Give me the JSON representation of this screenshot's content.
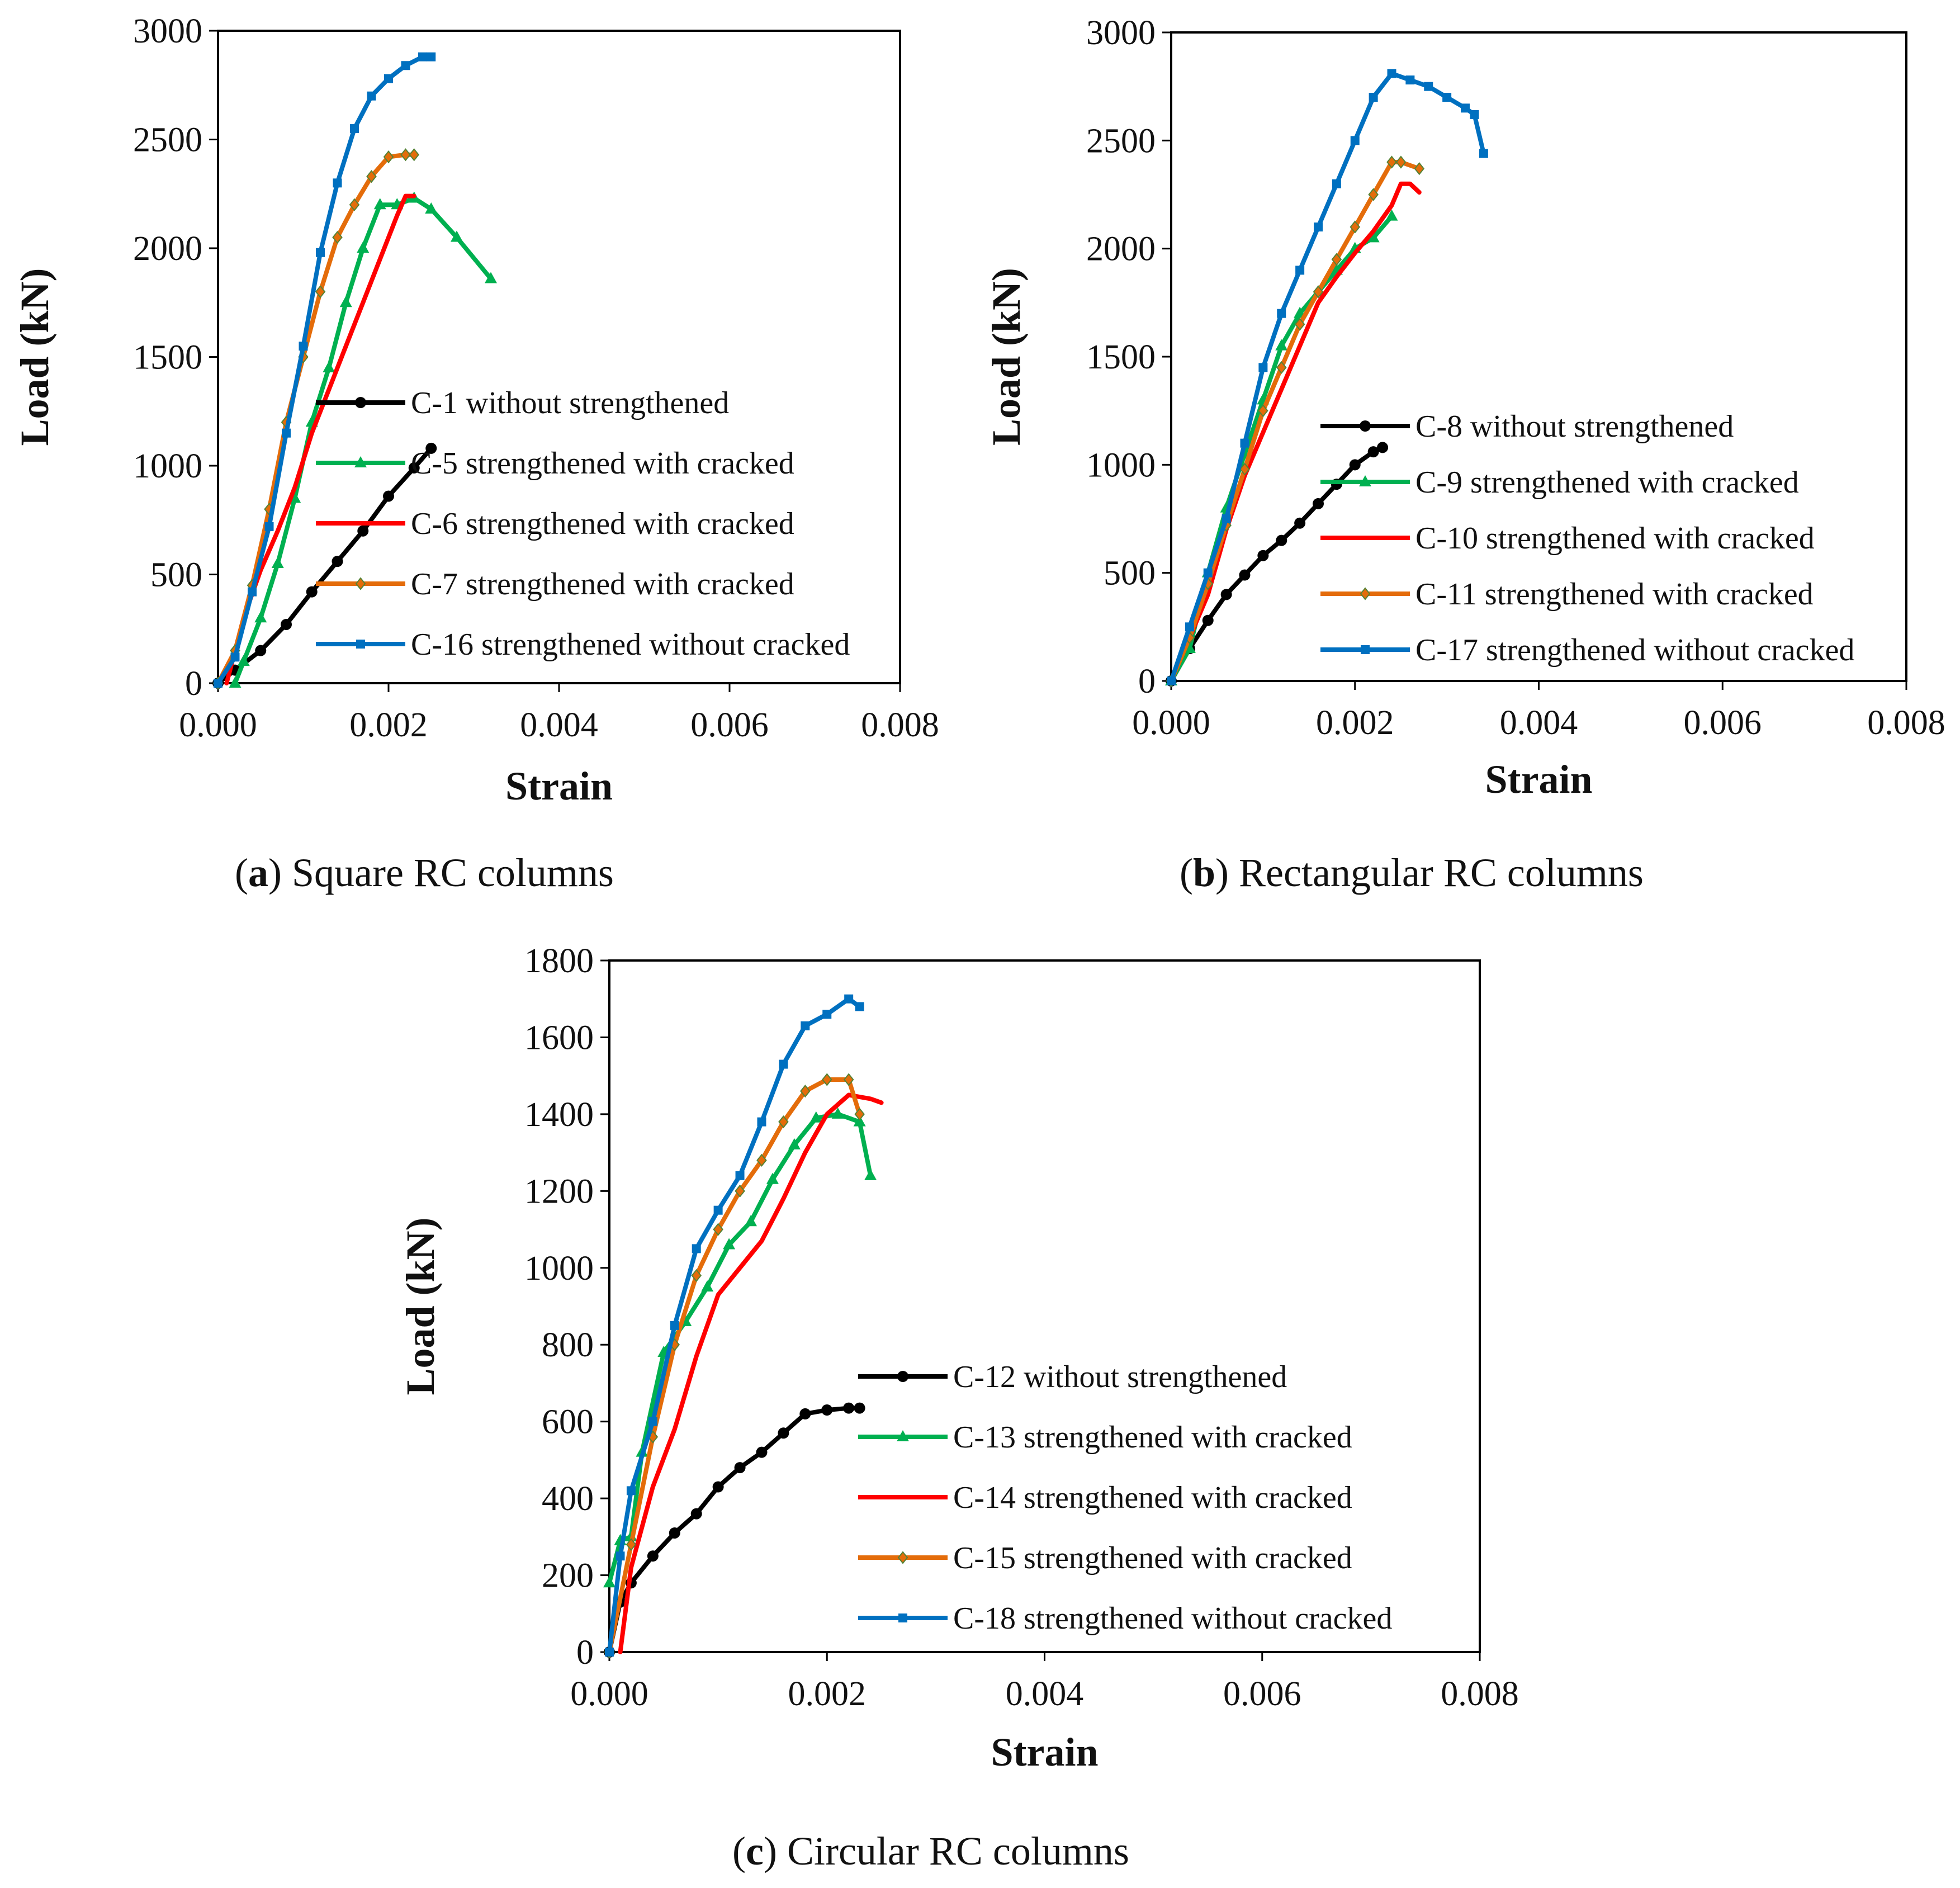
{
  "chart_data": [
    {
      "id": "a",
      "type": "line",
      "caption_letter": "a",
      "caption_text": "Square RC columns",
      "xlabel": "Strain",
      "ylabel": "Load (kN)",
      "xlim": [
        0,
        0.008
      ],
      "ylim": [
        0,
        3000
      ],
      "xticks": [
        "0.000",
        "0.002",
        "0.004",
        "0.006",
        "0.008"
      ],
      "yticks": [
        "0",
        "500",
        "1000",
        "1500",
        "2000",
        "2500",
        "3000"
      ],
      "legend_position": "center-right",
      "series": [
        {
          "name": "C-1 without strengthened",
          "color": "#000000",
          "marker": "circle",
          "x": [
            0,
            0.0002,
            0.0005,
            0.0008,
            0.0011,
            0.0014,
            0.0017,
            0.002,
            0.0023,
            0.0025
          ],
          "y": [
            0,
            60,
            150,
            270,
            420,
            560,
            700,
            860,
            990,
            1080
          ]
        },
        {
          "name": "C-5 strengthened with cracked",
          "color": "#00B050",
          "marker": "triangle",
          "x": [
            0.0002,
            0.0003,
            0.0005,
            0.0007,
            0.0009,
            0.0011,
            0.0013,
            0.0015,
            0.0017,
            0.0019,
            0.0021,
            0.0023,
            0.0025,
            0.0028,
            0.0032
          ],
          "y": [
            0,
            100,
            300,
            550,
            850,
            1200,
            1450,
            1750,
            2000,
            2200,
            2200,
            2230,
            2180,
            2050,
            1860
          ]
        },
        {
          "name": "C-6 strengthened with cracked",
          "color": "#FF0000",
          "marker": "line",
          "x": [
            0.0001,
            0.0003,
            0.0005,
            0.0007,
            0.0009,
            0.0011,
            0.0013,
            0.0015,
            0.0017,
            0.0019,
            0.0021,
            0.0022,
            0.0023
          ],
          "y": [
            0,
            300,
            520,
            700,
            900,
            1150,
            1350,
            1550,
            1750,
            1950,
            2150,
            2240,
            2240
          ]
        },
        {
          "name": "C-7 strengthened with cracked",
          "color": "#E46C0A",
          "marker": "diamond",
          "x": [
            0,
            0.0002,
            0.0004,
            0.0006,
            0.0008,
            0.001,
            0.0012,
            0.0014,
            0.0016,
            0.0018,
            0.002,
            0.0022,
            0.0023
          ],
          "y": [
            0,
            150,
            450,
            800,
            1200,
            1500,
            1800,
            2050,
            2200,
            2330,
            2420,
            2430,
            2430
          ]
        },
        {
          "name": "C-16 strengthened without cracked",
          "color": "#0070C0",
          "marker": "square",
          "x": [
            0,
            0.0002,
            0.0004,
            0.0006,
            0.0008,
            0.001,
            0.0012,
            0.0014,
            0.0016,
            0.0018,
            0.002,
            0.0022,
            0.0024,
            0.0025
          ],
          "y": [
            0,
            120,
            420,
            720,
            1150,
            1550,
            1980,
            2300,
            2550,
            2700,
            2780,
            2840,
            2880,
            2880
          ]
        }
      ]
    },
    {
      "id": "b",
      "type": "line",
      "caption_letter": "b",
      "caption_text": "Rectangular RC columns",
      "xlabel": "Strain",
      "ylabel": "Load (kN)",
      "xlim": [
        0,
        0.008
      ],
      "ylim": [
        0,
        3000
      ],
      "xticks": [
        "0.000",
        "0.002",
        "0.004",
        "0.006",
        "0.008"
      ],
      "yticks": [
        "0",
        "500",
        "1000",
        "1500",
        "2000",
        "2500",
        "3000"
      ],
      "legend_position": "center-right",
      "series": [
        {
          "name": "C-8 without strengthened",
          "color": "#000000",
          "marker": "circle",
          "x": [
            0,
            0.0002,
            0.0004,
            0.0006,
            0.0008,
            0.001,
            0.0012,
            0.0014,
            0.0016,
            0.0018,
            0.002,
            0.0022,
            0.0023
          ],
          "y": [
            0,
            150,
            280,
            400,
            490,
            580,
            650,
            730,
            820,
            910,
            1000,
            1060,
            1080
          ]
        },
        {
          "name": "C-9 strengthened with cracked",
          "color": "#00B050",
          "marker": "triangle",
          "x": [
            0,
            0.0002,
            0.0004,
            0.0006,
            0.0008,
            0.001,
            0.0012,
            0.0014,
            0.0016,
            0.0018,
            0.002,
            0.0022,
            0.0024
          ],
          "y": [
            0,
            150,
            500,
            800,
            1050,
            1300,
            1550,
            1700,
            1800,
            1900,
            2000,
            2050,
            2150
          ]
        },
        {
          "name": "C-10 strengthened with cracked",
          "color": "#FF0000",
          "marker": "line",
          "x": [
            0,
            0.0002,
            0.0004,
            0.0006,
            0.0008,
            0.001,
            0.0012,
            0.0014,
            0.0016,
            0.0018,
            0.002,
            0.0022,
            0.0024,
            0.0025,
            0.0026,
            0.0027
          ],
          "y": [
            0,
            200,
            400,
            700,
            950,
            1150,
            1350,
            1550,
            1750,
            1870,
            1980,
            2080,
            2200,
            2300,
            2300,
            2260
          ]
        },
        {
          "name": "C-11 strengthened with cracked",
          "color": "#E46C0A",
          "marker": "diamond",
          "x": [
            0,
            0.0002,
            0.0004,
            0.0006,
            0.0008,
            0.001,
            0.0012,
            0.0014,
            0.0016,
            0.0018,
            0.002,
            0.0022,
            0.0024,
            0.0025,
            0.0027
          ],
          "y": [
            0,
            200,
            450,
            720,
            980,
            1250,
            1450,
            1650,
            1800,
            1950,
            2100,
            2250,
            2400,
            2400,
            2370
          ]
        },
        {
          "name": "C-17 strengthened without cracked",
          "color": "#0070C0",
          "marker": "square",
          "x": [
            0,
            0.0002,
            0.0004,
            0.0006,
            0.0008,
            0.001,
            0.0012,
            0.0014,
            0.0016,
            0.0018,
            0.002,
            0.0022,
            0.0024,
            0.0026,
            0.0028,
            0.003,
            0.0032,
            0.0033,
            0.0034
          ],
          "y": [
            0,
            250,
            500,
            750,
            1100,
            1450,
            1700,
            1900,
            2100,
            2300,
            2500,
            2700,
            2810,
            2780,
            2750,
            2700,
            2650,
            2620,
            2440
          ]
        }
      ]
    },
    {
      "id": "c",
      "type": "line",
      "caption_letter": "c",
      "caption_text": "Circular RC columns",
      "xlabel": "Strain",
      "ylabel": "Load (kN)",
      "xlim": [
        0,
        0.008
      ],
      "ylim": [
        0,
        1800
      ],
      "xticks": [
        "0.000",
        "0.002",
        "0.004",
        "0.006",
        "0.008"
      ],
      "yticks": [
        "0",
        "200",
        "400",
        "600",
        "800",
        "1000",
        "1200",
        "1400",
        "1600",
        "1800"
      ],
      "legend_position": "bottom-right",
      "series": [
        {
          "name": "C-12 without strengthened",
          "color": "#000000",
          "marker": "circle",
          "x": [
            0,
            0.0001,
            0.0002,
            0.0004,
            0.0006,
            0.0008,
            0.001,
            0.0012,
            0.0014,
            0.0016,
            0.0018,
            0.002,
            0.0022,
            0.0023
          ],
          "y": [
            0,
            130,
            180,
            250,
            310,
            360,
            430,
            480,
            520,
            570,
            620,
            630,
            635,
            635
          ]
        },
        {
          "name": "C-13 strengthened with cracked",
          "color": "#00B050",
          "marker": "triangle",
          "x": [
            0,
            0.0001,
            0.0002,
            0.0003,
            0.0005,
            0.0007,
            0.0009,
            0.0011,
            0.0013,
            0.0015,
            0.0017,
            0.0019,
            0.0021,
            0.0023,
            0.0024
          ],
          "y": [
            180,
            290,
            300,
            520,
            780,
            860,
            950,
            1060,
            1120,
            1230,
            1320,
            1390,
            1400,
            1380,
            1240
          ]
        },
        {
          "name": "C-14 strengthened with cracked",
          "color": "#FF0000",
          "marker": "line",
          "x": [
            0.0001,
            0.0002,
            0.0004,
            0.0006,
            0.0008,
            0.001,
            0.0012,
            0.0014,
            0.0016,
            0.0018,
            0.002,
            0.0022,
            0.0024,
            0.0025
          ],
          "y": [
            0,
            220,
            430,
            580,
            770,
            930,
            1000,
            1070,
            1180,
            1300,
            1400,
            1450,
            1440,
            1430
          ]
        },
        {
          "name": "C-15 strengthened with cracked",
          "color": "#E46C0A",
          "marker": "diamond",
          "x": [
            0,
            0.0002,
            0.0004,
            0.0006,
            0.0008,
            0.001,
            0.0012,
            0.0014,
            0.0016,
            0.0018,
            0.002,
            0.0022,
            0.0023
          ],
          "y": [
            0,
            280,
            560,
            800,
            980,
            1100,
            1200,
            1280,
            1380,
            1460,
            1490,
            1490,
            1400
          ]
        },
        {
          "name": "C-18 strengthened without cracked",
          "color": "#0070C0",
          "marker": "square",
          "x": [
            0,
            0.0001,
            0.0002,
            0.0004,
            0.0006,
            0.0008,
            0.001,
            0.0012,
            0.0014,
            0.0016,
            0.0018,
            0.002,
            0.0022,
            0.0023
          ],
          "y": [
            0,
            250,
            420,
            600,
            850,
            1050,
            1150,
            1240,
            1380,
            1530,
            1630,
            1660,
            1700,
            1680
          ]
        }
      ]
    }
  ]
}
